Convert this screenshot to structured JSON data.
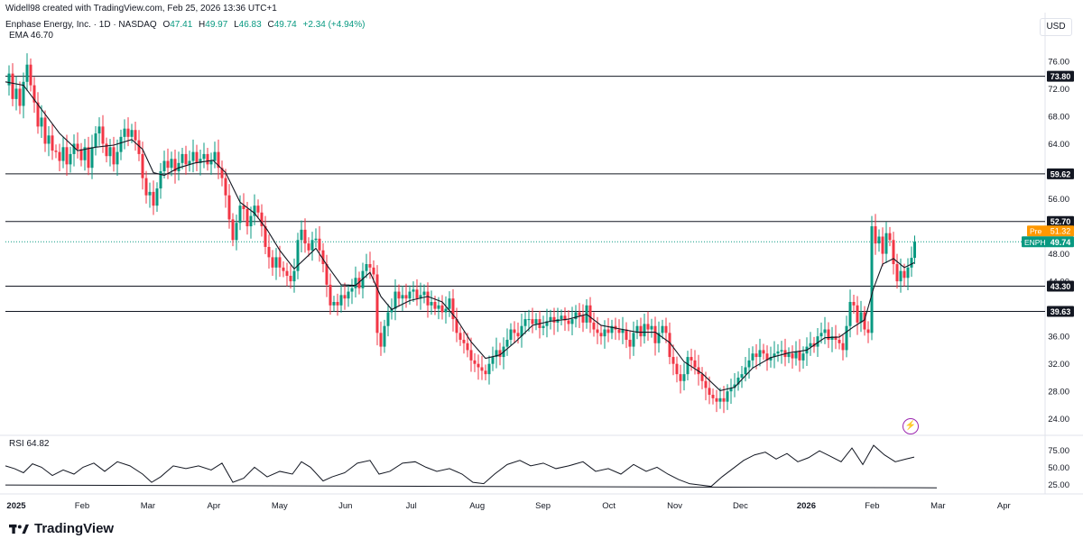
{
  "header": {
    "created_line": "Widell98 created with TradingView.com, Feb 25, 2026 13:36 UTC+1",
    "symbol_title": "Enphase Energy, Inc. · 1D · NASDAQ",
    "open_label": "O",
    "open": "47.41",
    "high_label": "H",
    "high": "49.97",
    "low_label": "L",
    "low": "46.83",
    "close_label": "C",
    "close": "49.74",
    "change": "+2.34 (+4.94%)",
    "ema_label": "EMA",
    "ema_value": "46.70",
    "currency": "USD"
  },
  "rsi": {
    "label": "RSI",
    "value": "64.82"
  },
  "branding": {
    "logo_text": "TradingView"
  },
  "colors": {
    "up": "#089981",
    "down": "#f23645",
    "ema": "#131722",
    "level": "#131722",
    "price_tag": "#089981",
    "pre_tag": "#ff9800",
    "grid": "#f0f3fa"
  },
  "icons": {
    "flash": "flash-icon",
    "logo": "tradingview-logo-icon"
  },
  "chart_data": {
    "type": "candlestick",
    "symbol": "ENPH",
    "timeframe": "1D",
    "y_ticks": [
      76,
      72,
      68,
      64,
      56,
      48,
      44,
      36,
      32,
      28,
      24
    ],
    "y_tick_labels": [
      "76.00",
      "72.00",
      "68.00",
      "64.00",
      "56.00",
      "48.00",
      "44.00",
      "36.00",
      "32.00",
      "28.00",
      "24.00"
    ],
    "ylim": [
      22,
      79
    ],
    "x_tick_labels": [
      "2025",
      "Feb",
      "Mar",
      "Apr",
      "May",
      "Jun",
      "Jul",
      "Aug",
      "Sep",
      "Oct",
      "Nov",
      "Dec",
      "2026",
      "Feb",
      "Mar",
      "Apr"
    ],
    "horizontal_levels": [
      {
        "value": 73.8,
        "label": "73.80"
      },
      {
        "value": 59.62,
        "label": "59.62"
      },
      {
        "value": 52.7,
        "label": "52.70"
      },
      {
        "value": 43.3,
        "label": "43.30"
      },
      {
        "value": 39.63,
        "label": "39.63"
      }
    ],
    "last_price": {
      "symbol": "ENPH",
      "value": 49.74,
      "label": "49.74"
    },
    "pre_market": {
      "tag": "Pre",
      "value": 51.32,
      "label": "51.32"
    },
    "price_path": [
      [
        0,
        72.5
      ],
      [
        4,
        74.2
      ],
      [
        8,
        70.5
      ],
      [
        12,
        72.0
      ],
      [
        16,
        69.5
      ],
      [
        20,
        73.0
      ],
      [
        24,
        75.5
      ],
      [
        28,
        72.5
      ],
      [
        32,
        70.0
      ],
      [
        36,
        66.5
      ],
      [
        40,
        67.8
      ],
      [
        44,
        64.0
      ],
      [
        48,
        65.2
      ],
      [
        52,
        63.0
      ],
      [
        56,
        62.8
      ],
      [
        60,
        61.5
      ],
      [
        64,
        63.5
      ],
      [
        68,
        61.0
      ],
      [
        72,
        62.5
      ],
      [
        76,
        64.0
      ],
      [
        80,
        63.2
      ],
      [
        84,
        61.6
      ],
      [
        88,
        63.5
      ],
      [
        92,
        60.5
      ],
      [
        96,
        63.5
      ],
      [
        100,
        65.5
      ],
      [
        104,
        66.5
      ],
      [
        108,
        64.0
      ],
      [
        112,
        62.2
      ],
      [
        116,
        63.5
      ],
      [
        120,
        61.0
      ],
      [
        124,
        62.8
      ],
      [
        128,
        65.0
      ],
      [
        132,
        66.2
      ],
      [
        136,
        65.0
      ],
      [
        140,
        66.0
      ],
      [
        144,
        64.5
      ],
      [
        148,
        62.5
      ],
      [
        152,
        59.0
      ],
      [
        156,
        56.5
      ],
      [
        160,
        57.0
      ],
      [
        164,
        55.0
      ],
      [
        168,
        57.5
      ],
      [
        172,
        60.0
      ],
      [
        176,
        61.5
      ],
      [
        180,
        60.5
      ],
      [
        184,
        61.8
      ],
      [
        188,
        60.0
      ],
      [
        192,
        61.2
      ],
      [
        196,
        62.5
      ],
      [
        200,
        61.0
      ],
      [
        204,
        61.5
      ],
      [
        208,
        62.8
      ],
      [
        212,
        61.2
      ],
      [
        216,
        61.8
      ],
      [
        220,
        62.5
      ],
      [
        224,
        61.0
      ],
      [
        228,
        61.5
      ],
      [
        232,
        62.8
      ],
      [
        236,
        60.5
      ],
      [
        240,
        59.0
      ],
      [
        244,
        56.5
      ],
      [
        248,
        53.0
      ],
      [
        252,
        50.0
      ],
      [
        256,
        52.5
      ],
      [
        260,
        55.0
      ],
      [
        264,
        54.5
      ],
      [
        268,
        52.0
      ],
      [
        272,
        53.5
      ],
      [
        276,
        55.0
      ],
      [
        280,
        54.0
      ],
      [
        284,
        52.0
      ],
      [
        288,
        49.0
      ],
      [
        292,
        47.5
      ],
      [
        296,
        46.0
      ],
      [
        300,
        47.5
      ],
      [
        304,
        46.0
      ],
      [
        308,
        45.5
      ],
      [
        312,
        44.8
      ],
      [
        316,
        44.0
      ],
      [
        320,
        45.5
      ],
      [
        324,
        50.0
      ],
      [
        328,
        51.5
      ],
      [
        332,
        49.5
      ],
      [
        336,
        48.5
      ],
      [
        340,
        50.0
      ],
      [
        344,
        50.2
      ],
      [
        348,
        48.5
      ],
      [
        352,
        46.5
      ],
      [
        356,
        43.5
      ],
      [
        360,
        40.5
      ],
      [
        364,
        41.0
      ],
      [
        368,
        40.5
      ],
      [
        372,
        42.0
      ],
      [
        376,
        41.5
      ],
      [
        380,
        42.5
      ],
      [
        384,
        43.0
      ],
      [
        388,
        44.5
      ],
      [
        392,
        43.0
      ],
      [
        396,
        45.5
      ],
      [
        400,
        46.5
      ],
      [
        404,
        46.0
      ],
      [
        408,
        45.0
      ],
      [
        412,
        36.5
      ],
      [
        416,
        34.5
      ],
      [
        420,
        37.5
      ],
      [
        424,
        39.5
      ],
      [
        428,
        40.0
      ],
      [
        432,
        42.5
      ],
      [
        436,
        41.5
      ],
      [
        440,
        42.0
      ],
      [
        444,
        41.5
      ],
      [
        448,
        42.5
      ],
      [
        452,
        42.8
      ],
      [
        456,
        41.5
      ],
      [
        460,
        42.0
      ],
      [
        464,
        42.5
      ],
      [
        468,
        40.5
      ],
      [
        472,
        41.0
      ],
      [
        476,
        40.0
      ],
      [
        480,
        40.5
      ],
      [
        484,
        39.5
      ],
      [
        488,
        40.0
      ],
      [
        492,
        41.5
      ],
      [
        496,
        38.5
      ],
      [
        500,
        36.5
      ],
      [
        504,
        35.5
      ],
      [
        508,
        35.0
      ],
      [
        512,
        34.0
      ],
      [
        516,
        32.5
      ],
      [
        520,
        32.0
      ],
      [
        524,
        31.5
      ],
      [
        528,
        31.0
      ],
      [
        532,
        30.5
      ],
      [
        536,
        32.0
      ],
      [
        540,
        33.0
      ],
      [
        544,
        34.0
      ],
      [
        548,
        33.0
      ],
      [
        552,
        34.5
      ],
      [
        556,
        35.5
      ],
      [
        560,
        37.0
      ],
      [
        564,
        36.5
      ],
      [
        568,
        36.0
      ],
      [
        572,
        37.5
      ],
      [
        576,
        38.5
      ],
      [
        580,
        38.5
      ],
      [
        584,
        37.8
      ],
      [
        588,
        38.5
      ],
      [
        592,
        37.2
      ],
      [
        596,
        37.5
      ],
      [
        600,
        38.2
      ],
      [
        604,
        38.8
      ],
      [
        608,
        38.0
      ],
      [
        612,
        38.5
      ],
      [
        616,
        39.0
      ],
      [
        620,
        38.3
      ],
      [
        624,
        37.8
      ],
      [
        628,
        38.5
      ],
      [
        632,
        39.5
      ],
      [
        636,
        39.0
      ],
      [
        640,
        38.0
      ],
      [
        644,
        40.5
      ],
      [
        648,
        38.0
      ],
      [
        652,
        37.0
      ],
      [
        656,
        36.5
      ],
      [
        660,
        36.0
      ],
      [
        664,
        37.0
      ],
      [
        668,
        36.5
      ],
      [
        672,
        37.5
      ],
      [
        676,
        37.0
      ],
      [
        680,
        36.5
      ],
      [
        684,
        37.0
      ],
      [
        688,
        35.5
      ],
      [
        692,
        34.5
      ],
      [
        696,
        36.5
      ],
      [
        700,
        37.5
      ],
      [
        704,
        36.0
      ],
      [
        708,
        37.8
      ],
      [
        712,
        37.0
      ],
      [
        716,
        37.5
      ],
      [
        720,
        35.0
      ],
      [
        724,
        36.5
      ],
      [
        728,
        37.5
      ],
      [
        732,
        36.5
      ],
      [
        736,
        33.0
      ],
      [
        740,
        32.0
      ],
      [
        744,
        30.5
      ],
      [
        748,
        29.5
      ],
      [
        752,
        30.5
      ],
      [
        756,
        33.0
      ],
      [
        760,
        32.5
      ],
      [
        764,
        31.5
      ],
      [
        768,
        30.5
      ],
      [
        772,
        29.5
      ],
      [
        776,
        28.5
      ],
      [
        780,
        27.5
      ],
      [
        784,
        27.0
      ],
      [
        788,
        26.5
      ],
      [
        792,
        27.0
      ],
      [
        796,
        26.5
      ],
      [
        800,
        28.0
      ],
      [
        804,
        28.5
      ],
      [
        808,
        29.0
      ],
      [
        812,
        30.0
      ],
      [
        816,
        30.5
      ],
      [
        820,
        31.5
      ],
      [
        824,
        32.5
      ],
      [
        828,
        33.5
      ],
      [
        832,
        33.0
      ],
      [
        836,
        34.0
      ],
      [
        840,
        33.5
      ],
      [
        844,
        32.5
      ],
      [
        848,
        33.0
      ],
      [
        852,
        33.5
      ],
      [
        856,
        33.8
      ],
      [
        860,
        34.0
      ],
      [
        864,
        33.0
      ],
      [
        868,
        33.5
      ],
      [
        872,
        32.8
      ],
      [
        876,
        33.8
      ],
      [
        880,
        32.5
      ],
      [
        884,
        33.5
      ],
      [
        888,
        34.5
      ],
      [
        892,
        35.0
      ],
      [
        896,
        34.5
      ],
      [
        900,
        36.0
      ],
      [
        904,
        36.5
      ],
      [
        908,
        37.0
      ],
      [
        912,
        35.5
      ],
      [
        916,
        36.0
      ],
      [
        920,
        35.5
      ],
      [
        924,
        35.0
      ],
      [
        928,
        34.0
      ],
      [
        932,
        37.5
      ],
      [
        936,
        41.0
      ],
      [
        940,
        40.5
      ],
      [
        944,
        38.0
      ],
      [
        948,
        39.5
      ],
      [
        952,
        37.0
      ],
      [
        956,
        36.5
      ],
      [
        960,
        52.0
      ],
      [
        964,
        49.5
      ],
      [
        968,
        50.5
      ],
      [
        972,
        48.0
      ],
      [
        976,
        51.0
      ],
      [
        980,
        50.0
      ],
      [
        984,
        46.5
      ],
      [
        988,
        44.0
      ],
      [
        992,
        45.5
      ],
      [
        996,
        44.5
      ],
      [
        1000,
        46.0
      ],
      [
        1004,
        47.41
      ],
      [
        1007,
        49.74
      ]
    ],
    "ema_path": [
      [
        0,
        73.0
      ],
      [
        20,
        72.5
      ],
      [
        40,
        69.0
      ],
      [
        60,
        65.5
      ],
      [
        80,
        63.0
      ],
      [
        100,
        63.5
      ],
      [
        120,
        63.8
      ],
      [
        140,
        64.6
      ],
      [
        152,
        63.2
      ],
      [
        164,
        59.8
      ],
      [
        176,
        59.4
      ],
      [
        192,
        60.5
      ],
      [
        210,
        61.2
      ],
      [
        230,
        61.6
      ],
      [
        244,
        59.8
      ],
      [
        260,
        55.5
      ],
      [
        276,
        53.9
      ],
      [
        290,
        51.5
      ],
      [
        304,
        48.5
      ],
      [
        320,
        45.8
      ],
      [
        332,
        47.3
      ],
      [
        344,
        48.8
      ],
      [
        356,
        46.4
      ],
      [
        372,
        43.5
      ],
      [
        388,
        43.4
      ],
      [
        404,
        45.3
      ],
      [
        416,
        41.8
      ],
      [
        428,
        39.9
      ],
      [
        448,
        41.2
      ],
      [
        468,
        41.8
      ],
      [
        484,
        41.0
      ],
      [
        500,
        38.5
      ],
      [
        516,
        35.2
      ],
      [
        532,
        32.8
      ],
      [
        548,
        33.3
      ],
      [
        566,
        35.3
      ],
      [
        584,
        37.6
      ],
      [
        604,
        38.2
      ],
      [
        624,
        38.5
      ],
      [
        644,
        39.2
      ],
      [
        660,
        37.6
      ],
      [
        680,
        37.1
      ],
      [
        700,
        36.6
      ],
      [
        720,
        36.6
      ],
      [
        736,
        35.1
      ],
      [
        752,
        32.3
      ],
      [
        772,
        30.6
      ],
      [
        792,
        28.1
      ],
      [
        808,
        28.6
      ],
      [
        828,
        31.4
      ],
      [
        848,
        32.9
      ],
      [
        868,
        33.6
      ],
      [
        888,
        34.0
      ],
      [
        908,
        35.8
      ],
      [
        924,
        35.9
      ],
      [
        940,
        37.4
      ],
      [
        952,
        38.4
      ],
      [
        962,
        43.0
      ],
      [
        972,
        46.5
      ],
      [
        984,
        47.3
      ],
      [
        996,
        46.0
      ],
      [
        1007,
        46.7
      ]
    ],
    "rsi": {
      "y_ticks": [
        75,
        50,
        25
      ],
      "y_tick_labels": [
        "75.00",
        "50.00",
        "25.00"
      ],
      "ylim": [
        15,
        90
      ],
      "last": 64.82,
      "path": [
        [
          0,
          52
        ],
        [
          10,
          48
        ],
        [
          20,
          42
        ],
        [
          30,
          55
        ],
        [
          40,
          50
        ],
        [
          52,
          38
        ],
        [
          64,
          46
        ],
        [
          76,
          40
        ],
        [
          86,
          50
        ],
        [
          98,
          56
        ],
        [
          110,
          44
        ],
        [
          124,
          58
        ],
        [
          138,
          52
        ],
        [
          152,
          40
        ],
        [
          162,
          28
        ],
        [
          172,
          36
        ],
        [
          186,
          52
        ],
        [
          200,
          48
        ],
        [
          214,
          52
        ],
        [
          228,
          46
        ],
        [
          240,
          56
        ],
        [
          252,
          28
        ],
        [
          264,
          34
        ],
        [
          276,
          50
        ],
        [
          290,
          36
        ],
        [
          304,
          44
        ],
        [
          318,
          40
        ],
        [
          328,
          58
        ],
        [
          338,
          50
        ],
        [
          352,
          30
        ],
        [
          362,
          36
        ],
        [
          376,
          42
        ],
        [
          390,
          56
        ],
        [
          404,
          60
        ],
        [
          414,
          40
        ],
        [
          426,
          44
        ],
        [
          440,
          56
        ],
        [
          454,
          58
        ],
        [
          466,
          50
        ],
        [
          478,
          44
        ],
        [
          492,
          48
        ],
        [
          506,
          40
        ],
        [
          518,
          28
        ],
        [
          530,
          26
        ],
        [
          542,
          40
        ],
        [
          556,
          54
        ],
        [
          570,
          60
        ],
        [
          582,
          52
        ],
        [
          596,
          56
        ],
        [
          610,
          48
        ],
        [
          624,
          52
        ],
        [
          640,
          58
        ],
        [
          654,
          44
        ],
        [
          668,
          48
        ],
        [
          682,
          40
        ],
        [
          696,
          54
        ],
        [
          710,
          44
        ],
        [
          722,
          50
        ],
        [
          734,
          40
        ],
        [
          746,
          32
        ],
        [
          758,
          26
        ],
        [
          770,
          24
        ],
        [
          782,
          22
        ],
        [
          794,
          36
        ],
        [
          806,
          48
        ],
        [
          818,
          60
        ],
        [
          830,
          68
        ],
        [
          842,
          72
        ],
        [
          854,
          62
        ],
        [
          866,
          70
        ],
        [
          878,
          58
        ],
        [
          890,
          64
        ],
        [
          902,
          74
        ],
        [
          914,
          66
        ],
        [
          926,
          58
        ],
        [
          938,
          78
        ],
        [
          950,
          54
        ],
        [
          962,
          82
        ],
        [
          974,
          68
        ],
        [
          986,
          58
        ],
        [
          998,
          62
        ],
        [
          1007,
          64.82
        ]
      ]
    }
  }
}
